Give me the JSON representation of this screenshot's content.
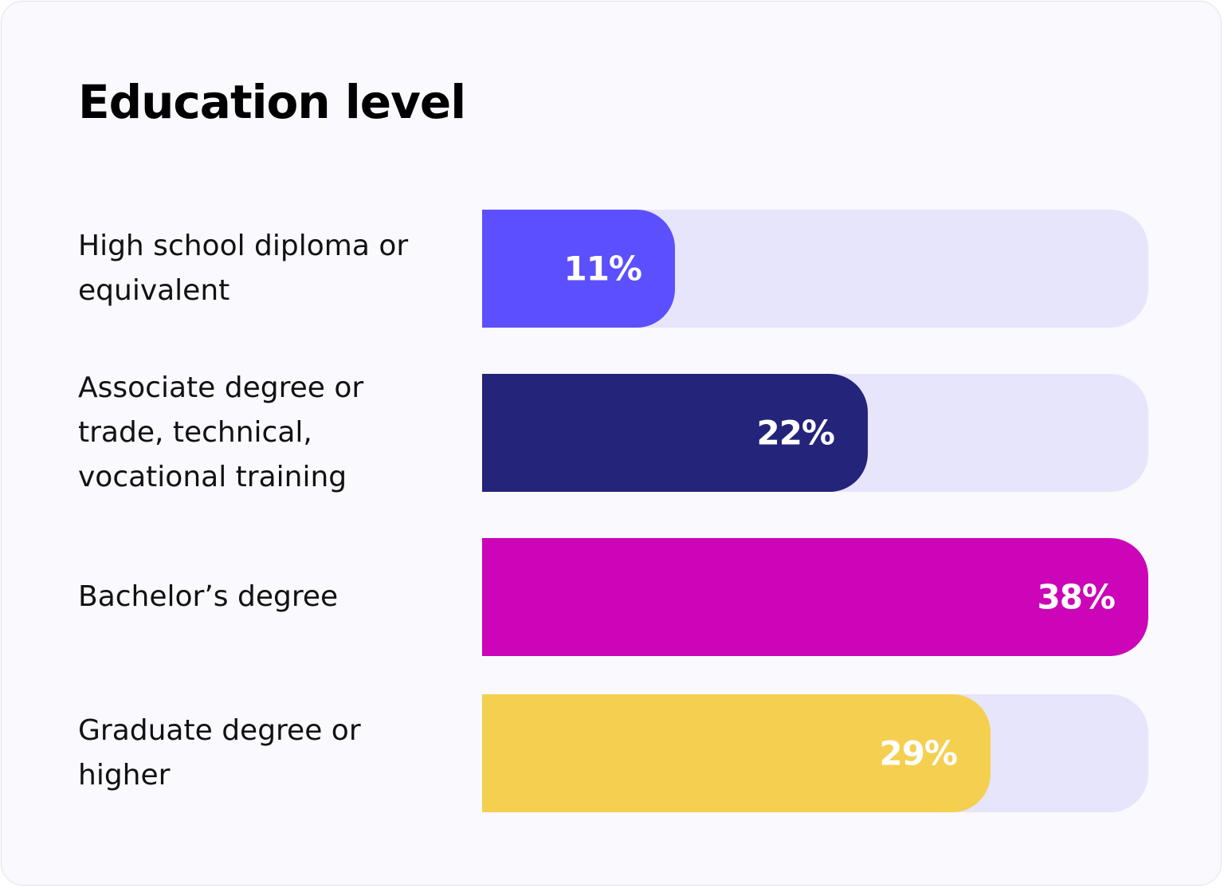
{
  "chart_data": {
    "type": "bar",
    "orientation": "horizontal",
    "title": "Education level",
    "categories": [
      "High school diploma or equivalent",
      "Associate degree or trade, technical, vocational training",
      "Bachelor’s degree",
      "Graduate degree or higher"
    ],
    "values": [
      11,
      22,
      38,
      29
    ],
    "value_labels": [
      "11%",
      "22%",
      "38%",
      "29%"
    ],
    "colors": [
      "#5b4ffe",
      "#24247a",
      "#cc05b8",
      "#f5cf4f"
    ],
    "xlim": [
      0,
      38
    ]
  }
}
